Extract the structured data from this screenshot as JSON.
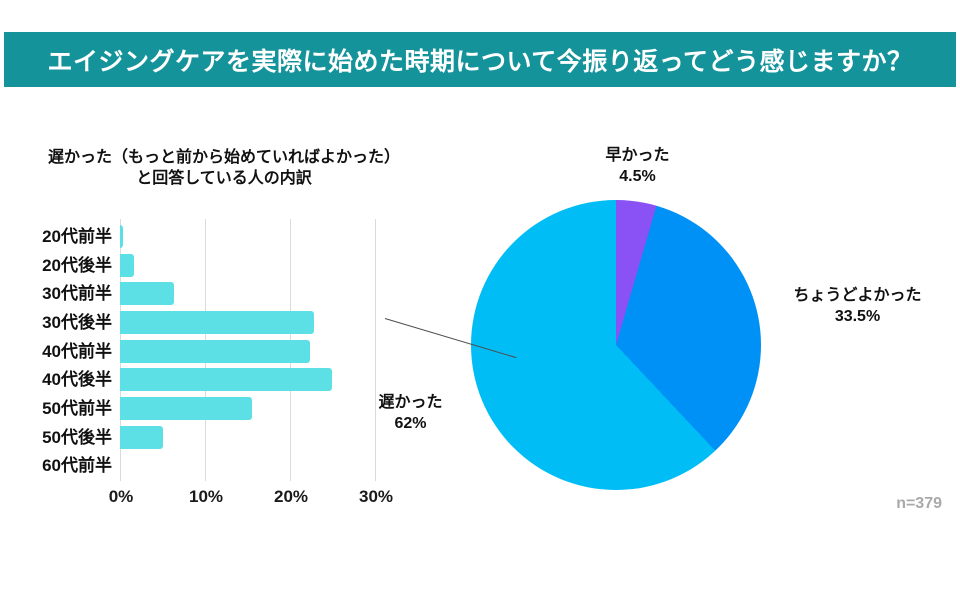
{
  "header": {
    "title": "エイジングケアを実際に始めた時期について今振り返ってどう感じますか？"
  },
  "colors": {
    "banner_teal": "#15939B",
    "bar_cyan": "#5CE0E6",
    "pie_early_purple": "#8A51F5",
    "pie_just_right_blue": "#0091F7",
    "pie_late_cyan": "#00BDF6",
    "gridline_gray": "#DBDBDB",
    "note_gray": "#A9A9A9"
  },
  "sample_note": "n=379",
  "chart_data": [
    {
      "type": "bar",
      "orientation": "horizontal",
      "title_line1": "遅かった（もっと前から始めていればよかった）",
      "title_line2": "と回答している人の内訳",
      "categories": [
        "20代前半",
        "20代後半",
        "30代前半",
        "30代後半",
        "40代前半",
        "40代後半",
        "50代前半",
        "50代後半",
        "60代前半"
      ],
      "values": [
        0.4,
        1.7,
        6.4,
        22.8,
        22.4,
        24.9,
        15.5,
        5.1,
        0
      ],
      "unit": "%",
      "xticks": [
        "0%",
        "10%",
        "20%",
        "30%"
      ],
      "xlim": [
        0,
        30
      ],
      "grid": true,
      "bar_color": "#5CE0E6"
    },
    {
      "type": "pie",
      "start_angle_deg": 0,
      "direction": "clockwise",
      "slices": [
        {
          "label": "早かった",
          "pct_label": "4.5%",
          "value": 4.5,
          "color": "#8A51F5"
        },
        {
          "label": "ちょうどよかった",
          "pct_label": "33.5%",
          "value": 33.5,
          "color": "#0091F7"
        },
        {
          "label": "遅かった",
          "pct_label": "62%",
          "value": 62,
          "color": "#00BDF6"
        }
      ],
      "note": "n=379"
    }
  ]
}
